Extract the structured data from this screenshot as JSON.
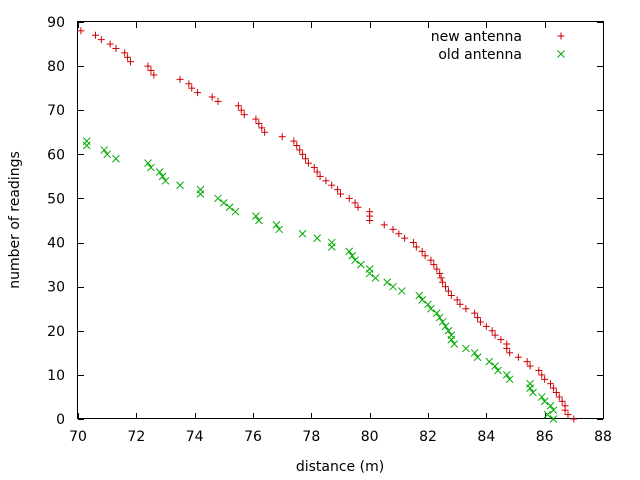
{
  "chart_data": {
    "type": "scatter",
    "title": "",
    "xlabel": "distance (m)",
    "ylabel": "number of readings",
    "xlim": [
      70,
      88
    ],
    "ylim": [
      0,
      90
    ],
    "xticks": [
      70,
      72,
      74,
      76,
      78,
      80,
      82,
      84,
      86,
      88
    ],
    "yticks": [
      0,
      10,
      20,
      30,
      40,
      50,
      60,
      70,
      80,
      90
    ],
    "grid": false,
    "legend_position": "top-right",
    "series": [
      {
        "name": "new antenna",
        "marker": "plus",
        "color": "#cc0000",
        "points": [
          [
            70.1,
            88
          ],
          [
            70.6,
            87
          ],
          [
            70.8,
            86
          ],
          [
            71.1,
            85
          ],
          [
            71.3,
            84
          ],
          [
            71.6,
            83
          ],
          [
            71.7,
            82
          ],
          [
            71.8,
            81
          ],
          [
            72.4,
            80
          ],
          [
            72.5,
            79
          ],
          [
            72.6,
            78
          ],
          [
            73.5,
            77
          ],
          [
            73.8,
            76
          ],
          [
            73.9,
            75
          ],
          [
            74.1,
            74
          ],
          [
            74.6,
            73
          ],
          [
            74.8,
            72
          ],
          [
            75.5,
            71
          ],
          [
            75.6,
            70
          ],
          [
            75.7,
            69
          ],
          [
            76.1,
            68
          ],
          [
            76.2,
            67
          ],
          [
            76.3,
            66
          ],
          [
            76.4,
            65
          ],
          [
            77.0,
            64
          ],
          [
            77.4,
            63
          ],
          [
            77.5,
            62
          ],
          [
            77.6,
            61
          ],
          [
            77.7,
            60
          ],
          [
            77.8,
            59
          ],
          [
            77.9,
            58
          ],
          [
            78.1,
            57
          ],
          [
            78.2,
            56
          ],
          [
            78.3,
            55
          ],
          [
            78.5,
            54
          ],
          [
            78.7,
            53
          ],
          [
            78.9,
            52
          ],
          [
            79.0,
            51
          ],
          [
            79.3,
            50
          ],
          [
            79.5,
            49
          ],
          [
            79.6,
            48
          ],
          [
            80.0,
            47
          ],
          [
            80.0,
            46
          ],
          [
            80.0,
            45
          ],
          [
            80.5,
            44
          ],
          [
            80.8,
            43
          ],
          [
            81.0,
            42
          ],
          [
            81.2,
            41
          ],
          [
            81.5,
            40
          ],
          [
            81.6,
            39
          ],
          [
            81.8,
            38
          ],
          [
            81.9,
            37
          ],
          [
            82.1,
            36
          ],
          [
            82.2,
            35
          ],
          [
            82.3,
            34
          ],
          [
            82.4,
            33
          ],
          [
            82.45,
            32
          ],
          [
            82.5,
            31
          ],
          [
            82.6,
            30
          ],
          [
            82.7,
            29
          ],
          [
            82.8,
            28
          ],
          [
            83.0,
            27
          ],
          [
            83.1,
            26
          ],
          [
            83.3,
            25
          ],
          [
            83.6,
            24
          ],
          [
            83.7,
            23
          ],
          [
            83.8,
            22
          ],
          [
            84.0,
            21
          ],
          [
            84.2,
            20
          ],
          [
            84.3,
            19
          ],
          [
            84.5,
            18
          ],
          [
            84.7,
            17
          ],
          [
            84.7,
            16
          ],
          [
            84.8,
            15
          ],
          [
            85.1,
            14
          ],
          [
            85.4,
            13
          ],
          [
            85.5,
            12
          ],
          [
            85.8,
            11
          ],
          [
            85.9,
            10
          ],
          [
            86.0,
            9
          ],
          [
            86.2,
            8
          ],
          [
            86.3,
            7
          ],
          [
            86.4,
            6
          ],
          [
            86.5,
            5
          ],
          [
            86.6,
            4
          ],
          [
            86.7,
            3
          ],
          [
            86.7,
            2
          ],
          [
            86.8,
            1
          ],
          [
            87.0,
            0
          ]
        ]
      },
      {
        "name": "old antenna",
        "marker": "cross",
        "color": "#00aa00",
        "points": [
          [
            70.3,
            63
          ],
          [
            70.3,
            62
          ],
          [
            70.9,
            61
          ],
          [
            71.0,
            60
          ],
          [
            71.3,
            59
          ],
          [
            72.4,
            58
          ],
          [
            72.5,
            57
          ],
          [
            72.8,
            56
          ],
          [
            72.9,
            55
          ],
          [
            73.0,
            54
          ],
          [
            73.5,
            53
          ],
          [
            74.2,
            52
          ],
          [
            74.2,
            51
          ],
          [
            74.8,
            50
          ],
          [
            75.0,
            49
          ],
          [
            75.2,
            48
          ],
          [
            75.4,
            47
          ],
          [
            76.1,
            46
          ],
          [
            76.2,
            45
          ],
          [
            76.8,
            44
          ],
          [
            76.9,
            43
          ],
          [
            77.7,
            42
          ],
          [
            78.2,
            41
          ],
          [
            78.7,
            40
          ],
          [
            78.7,
            39
          ],
          [
            79.3,
            38
          ],
          [
            79.4,
            37
          ],
          [
            79.5,
            36
          ],
          [
            79.7,
            35
          ],
          [
            80.0,
            34
          ],
          [
            80.0,
            33
          ],
          [
            80.2,
            32
          ],
          [
            80.6,
            31
          ],
          [
            80.8,
            30
          ],
          [
            81.1,
            29
          ],
          [
            81.7,
            28
          ],
          [
            81.8,
            27
          ],
          [
            82.0,
            26
          ],
          [
            82.1,
            25
          ],
          [
            82.3,
            24
          ],
          [
            82.4,
            23
          ],
          [
            82.5,
            22
          ],
          [
            82.6,
            21
          ],
          [
            82.7,
            20
          ],
          [
            82.8,
            19
          ],
          [
            82.8,
            18
          ],
          [
            82.9,
            17
          ],
          [
            83.3,
            16
          ],
          [
            83.6,
            15
          ],
          [
            83.7,
            14
          ],
          [
            84.1,
            13
          ],
          [
            84.3,
            12
          ],
          [
            84.4,
            11
          ],
          [
            84.7,
            10
          ],
          [
            84.8,
            9
          ],
          [
            85.5,
            8
          ],
          [
            85.5,
            7
          ],
          [
            85.6,
            6
          ],
          [
            85.9,
            5
          ],
          [
            86.0,
            4
          ],
          [
            86.2,
            3
          ],
          [
            86.3,
            2
          ],
          [
            86.1,
            1
          ],
          [
            86.3,
            0
          ]
        ]
      }
    ]
  }
}
